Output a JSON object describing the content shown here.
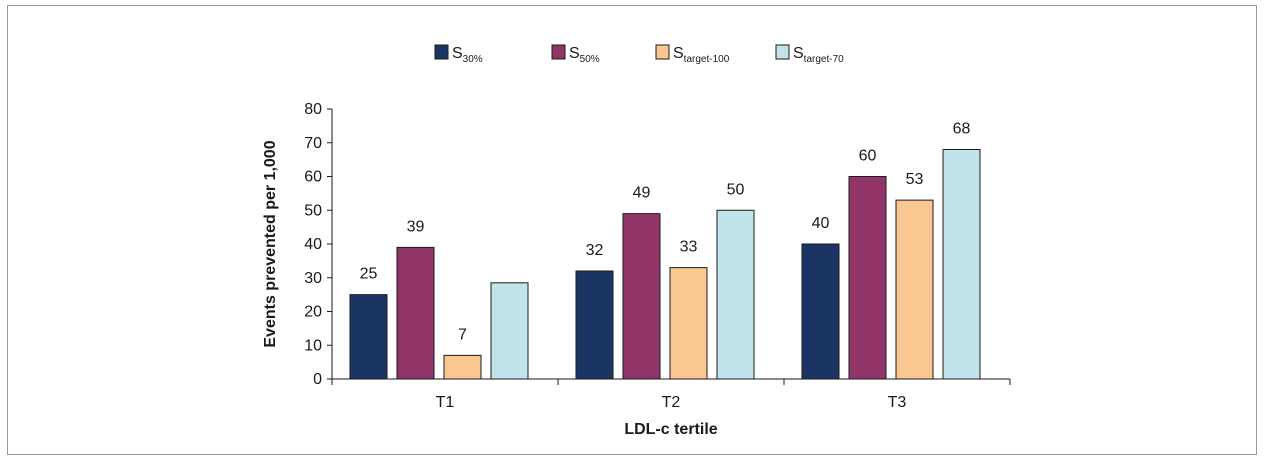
{
  "chart_data": {
    "type": "bar",
    "categories": [
      "T1",
      "T2",
      "T3"
    ],
    "series": [
      {
        "name": "S30%",
        "base": "S",
        "subscript": "30%",
        "color": "#1a3563",
        "values": [
          25,
          32,
          40
        ],
        "labels": [
          "25",
          "32",
          "40"
        ]
      },
      {
        "name": "S50%",
        "base": "S",
        "subscript": "50%",
        "color": "#913568",
        "values": [
          39,
          49,
          60
        ],
        "labels": [
          "39",
          "49",
          "60"
        ]
      },
      {
        "name": "Starget-100",
        "base": "S",
        "subscript": "target-100",
        "color": "#fac692",
        "values": [
          7,
          33,
          53
        ],
        "labels": [
          "7",
          "33",
          "53"
        ]
      },
      {
        "name": "Starget-70",
        "base": "S",
        "subscript": "target-70",
        "color": "#c1e4ea",
        "values": [
          28.5,
          50,
          68
        ],
        "labels": [
          "",
          "50",
          "68"
        ]
      }
    ],
    "title": "",
    "xlabel": "LDL-c tertile",
    "ylabel": "Events prevented per 1,000",
    "ylim": [
      0,
      80
    ],
    "yticks": [
      "0",
      "10",
      "20",
      "30",
      "40",
      "50",
      "60",
      "70",
      "80"
    ],
    "grid": false,
    "legend_position": "top-center"
  }
}
